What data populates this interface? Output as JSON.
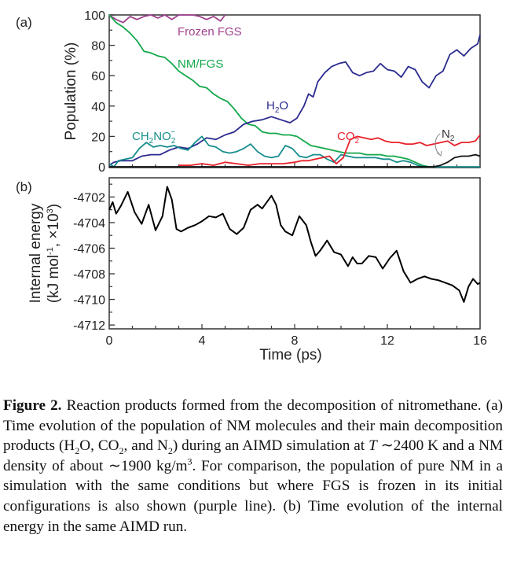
{
  "chart_data": [
    {
      "panel": "(a)",
      "type": "line",
      "title": "",
      "xlabel": "",
      "ylabel": "Population (%)",
      "xlim": [
        0,
        16
      ],
      "ylim": [
        0,
        100
      ],
      "yticks": [
        0,
        20,
        40,
        60,
        80,
        100
      ],
      "xticks_minor_step": 1,
      "grid": false,
      "series": [
        {
          "name": "Frozen FGS",
          "label": "Frozen FGS",
          "color": "#a0428f",
          "x": [
            0,
            0.3,
            0.6,
            0.9,
            1.2,
            1.5,
            1.8,
            2.1,
            2.4,
            2.7,
            3.0,
            3.3,
            3.6,
            3.9,
            4.2,
            4.5,
            4.8,
            5.0
          ],
          "y": [
            100,
            97,
            95,
            99,
            97,
            99,
            100,
            98,
            100,
            97,
            100,
            100,
            100,
            99,
            97,
            99,
            96,
            100
          ]
        },
        {
          "name": "NM/FGS",
          "label": "NM/FGS",
          "color": "#12a84a",
          "x": [
            0,
            0.3,
            0.6,
            0.9,
            1.2,
            1.5,
            1.8,
            2.1,
            2.4,
            2.7,
            3.0,
            3.3,
            3.6,
            3.9,
            4.2,
            4.5,
            4.8,
            5.1,
            5.4,
            5.7,
            6.0,
            6.3,
            6.6,
            6.9,
            7.2,
            7.5,
            7.8,
            8.1,
            8.4,
            8.7,
            9.0,
            9.3,
            9.6,
            9.9,
            10.2,
            10.5,
            10.8,
            11.1,
            11.4,
            11.7,
            12.0,
            12.3,
            12.6,
            12.9,
            13.2,
            13.5,
            13.8,
            14.1
          ],
          "y": [
            100,
            95,
            92,
            88,
            83,
            76,
            75,
            73,
            72,
            68,
            63,
            60,
            57,
            53,
            52,
            48,
            45,
            43,
            38,
            32,
            28,
            27,
            23,
            22,
            22,
            21,
            21,
            20,
            17,
            14,
            13,
            12,
            11,
            10,
            9,
            9,
            9,
            8,
            8,
            8,
            7,
            7,
            6,
            5,
            3,
            1,
            0,
            0
          ]
        },
        {
          "name": "H2O",
          "label": "H2O",
          "color": "#2b2b8f",
          "x": [
            0,
            0.2,
            0.5,
            1.0,
            1.4,
            1.8,
            2.2,
            2.6,
            3.0,
            3.4,
            3.8,
            4.2,
            4.6,
            5.0,
            5.4,
            5.8,
            6.2,
            6.6,
            7.0,
            7.4,
            7.8,
            8.1,
            8.4,
            8.6,
            8.8,
            9.0,
            9.3,
            9.6,
            9.9,
            10.2,
            10.5,
            10.8,
            11.1,
            11.4,
            11.7,
            12.0,
            12.3,
            12.6,
            12.9,
            13.2,
            13.5,
            13.8,
            14.1,
            14.4,
            14.7,
            15.0,
            15.3,
            15.6,
            15.9,
            16.0
          ],
          "y": [
            1,
            3,
            4,
            4,
            7,
            8,
            8,
            11,
            13,
            12,
            15,
            19,
            18,
            21,
            23,
            28,
            30,
            31,
            33,
            31,
            29,
            32,
            40,
            48,
            46,
            56,
            62,
            66,
            68,
            69,
            62,
            60,
            62,
            63,
            68,
            64,
            63,
            59,
            66,
            64,
            56,
            52,
            60,
            63,
            74,
            77,
            73,
            78,
            81,
            87
          ]
        },
        {
          "name": "CH2NO2-",
          "label": "CH2NO2-",
          "color": "#168d8d",
          "x": [
            0,
            0.2,
            0.4,
            0.7,
            1.0,
            1.3,
            1.6,
            1.9,
            2.2,
            2.5,
            2.8,
            3.1,
            3.4,
            3.7,
            4.0,
            4.3,
            4.6,
            4.9,
            5.2,
            5.5,
            5.8,
            6.1,
            6.4,
            6.7,
            7.0,
            7.3,
            7.6,
            7.9,
            8.2,
            8.5,
            8.8,
            9.1,
            9.4,
            9.7,
            10.0,
            10.3,
            10.6,
            10.9,
            11.2,
            11.5,
            11.8,
            12.1,
            12.4,
            12.7,
            13.0,
            13.3,
            13.6,
            13.9,
            14.2,
            16.0
          ],
          "y": [
            2,
            0,
            4,
            5,
            6,
            12,
            16,
            13,
            14,
            13,
            14,
            12,
            11,
            16,
            20,
            14,
            13,
            10,
            9,
            10,
            12,
            15,
            10,
            7,
            6,
            7,
            14,
            12,
            7,
            6,
            8,
            8,
            5,
            3,
            8,
            7,
            6,
            6,
            6,
            6,
            5,
            5,
            3,
            4,
            3,
            1,
            0,
            0,
            0,
            0
          ]
        },
        {
          "name": "CO2",
          "label": "CO2",
          "color": "#e8202a",
          "x": [
            3.0,
            3.5,
            4.0,
            4.5,
            5.0,
            5.5,
            6.0,
            6.5,
            7.0,
            7.5,
            8.0,
            8.3,
            8.6,
            8.9,
            9.2,
            9.5,
            9.8,
            10.1,
            10.4,
            10.7,
            11.0,
            11.3,
            11.6,
            11.9,
            12.2,
            12.5,
            12.8,
            13.1,
            13.4,
            13.7,
            14.0,
            14.3,
            14.6,
            14.9,
            15.2,
            15.5,
            15.8,
            16.0
          ],
          "y": [
            1,
            1,
            2,
            1,
            3,
            2,
            1,
            2,
            2,
            2,
            3,
            4,
            4,
            5,
            6,
            7,
            2,
            6,
            18,
            20,
            19,
            18,
            19,
            17,
            16,
            16,
            15,
            15,
            16,
            14,
            15,
            16,
            17,
            14,
            16,
            16,
            17,
            21
          ]
        },
        {
          "name": "N2",
          "label": "N2",
          "color": "#111111",
          "x": [
            0,
            14.0,
            14.3,
            14.6,
            14.9,
            15.2,
            15.5,
            15.8,
            16.0
          ],
          "y": [
            0,
            0,
            1,
            3,
            6,
            7,
            7,
            8,
            7
          ]
        }
      ],
      "annotations": [
        {
          "text": "Frozen FGS",
          "color": "#a0428f"
        },
        {
          "text": "NM/FGS",
          "color": "#12a84a"
        },
        {
          "text": "H2O",
          "color": "#2b2b8f"
        },
        {
          "text": "CH2NO2-",
          "color": "#168d8d"
        },
        {
          "text": "CO2",
          "color": "#e8202a"
        },
        {
          "text": "N2",
          "color": "#333333"
        }
      ]
    },
    {
      "panel": "(b)",
      "type": "line",
      "title": "",
      "xlabel": "Time (ps)",
      "ylabel": "Internal energy (kJ mol-1, ×10^3)",
      "xlim": [
        0,
        16
      ],
      "ylim": [
        -4712.3,
        -4700.5
      ],
      "xticks": [
        0,
        4,
        8,
        12,
        16
      ],
      "yticks": [
        -4712,
        -4710,
        -4708,
        -4706,
        -4704,
        -4702
      ],
      "grid": false,
      "series": [
        {
          "name": "Internal energy",
          "color": "#000000",
          "x": [
            0,
            0.15,
            0.3,
            0.5,
            0.8,
            1.1,
            1.4,
            1.7,
            2.0,
            2.3,
            2.5,
            2.7,
            2.9,
            3.1,
            3.4,
            3.7,
            4.0,
            4.3,
            4.6,
            4.9,
            5.2,
            5.5,
            5.8,
            6.1,
            6.4,
            6.6,
            6.8,
            7.0,
            7.2,
            7.4,
            7.6,
            7.9,
            8.2,
            8.5,
            8.7,
            8.9,
            9.1,
            9.4,
            9.7,
            10.0,
            10.3,
            10.5,
            10.7,
            10.9,
            11.2,
            11.5,
            11.8,
            12.1,
            12.4,
            12.7,
            13.0,
            13.3,
            13.6,
            13.9,
            14.2,
            14.5,
            14.8,
            15.1,
            15.3,
            15.5,
            15.7,
            15.9,
            16.0
          ],
          "y": [
            -4703.0,
            -4702.4,
            -4703.3,
            -4702.7,
            -4701.6,
            -4703.2,
            -4704.1,
            -4702.6,
            -4704.6,
            -4703.5,
            -4701.2,
            -4702.2,
            -4704.5,
            -4704.7,
            -4704.4,
            -4704.2,
            -4703.9,
            -4703.5,
            -4703.6,
            -4703.3,
            -4704.5,
            -4704.9,
            -4704.4,
            -4703.0,
            -4702.6,
            -4702.9,
            -4702.4,
            -4701.9,
            -4702.6,
            -4704.2,
            -4704.7,
            -4705.0,
            -4703.5,
            -4704.2,
            -4705.5,
            -4706.6,
            -4706.2,
            -4705.4,
            -4706.3,
            -4706.5,
            -4707.4,
            -4706.7,
            -4707.2,
            -4707.2,
            -4706.6,
            -4706.7,
            -4707.6,
            -4706.8,
            -4706.2,
            -4707.8,
            -4708.7,
            -4708.4,
            -4708.2,
            -4708.4,
            -4708.5,
            -4708.7,
            -4708.9,
            -4709.3,
            -4710.2,
            -4709.0,
            -4708.4,
            -4708.8,
            -4708.7
          ]
        }
      ]
    }
  ],
  "labels": {
    "panel_a": "(a)",
    "panel_b": "(b)",
    "ylabel_a": "Population (%)",
    "ylabel_b_line1": "Internal energy",
    "ylabel_b_line2": "(kJ mol",
    "ylabel_b_sup1": "-1",
    "ylabel_b_line2b": ", ×10",
    "ylabel_b_sup2": "3",
    "ylabel_b_line2c": ")",
    "xlabel": "Time (ps)",
    "series_frozen": "Frozen FGS",
    "series_nmfgs": "NM/FGS",
    "series_h2o_main": "H",
    "series_h2o_sub": "2",
    "series_h2o_tail": "O",
    "series_ch2no2_main": "CH",
    "series_ch2no2_sub1": "2",
    "series_ch2no2_mid": "NO",
    "series_ch2no2_sub2": "2",
    "series_ch2no2_sup": "−",
    "series_co2_main": "CO",
    "series_co2_sub": "2",
    "series_n2_main": "N",
    "series_n2_sub": "2"
  },
  "caption": {
    "label": "Figure 2.",
    "text1": " Reaction products formed from the decomposition of nitromethane. (a) Time evolution of the population of NM molecules and their main decomposition products (H",
    "sub1": "2",
    "text2": "O, CO",
    "sub2": "2",
    "text3": ", and N",
    "sub3": "2",
    "text4": ") during an AIMD simulation at ",
    "italicT": "T",
    "text5": " ∼2400 K and a NM density of about ∼1900 kg/m",
    "sup1": "3",
    "text6": ". For comparison, the population of pure NM in a simulation with the same conditions but where FGS is frozen in its initial configurations is also shown (purple line). (b) Time evolution of the internal energy in the same AIMD run."
  }
}
